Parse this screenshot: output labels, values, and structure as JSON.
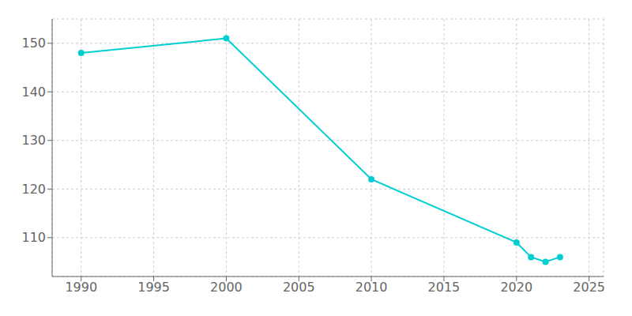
{
  "chart_data": {
    "type": "line",
    "x": [
      1990,
      2000,
      2010,
      2020,
      2021,
      2022,
      2023
    ],
    "values": [
      148,
      151,
      122,
      109,
      106,
      105,
      106
    ],
    "color": "#00CED1",
    "marker": "circle",
    "xlim": [
      1988,
      2026
    ],
    "xticks": [
      1990,
      1995,
      2000,
      2005,
      2010,
      2015,
      2020,
      2025
    ],
    "ylim": [
      102,
      155
    ],
    "yticks": [
      110,
      120,
      130,
      140,
      150
    ],
    "grid": true
  }
}
